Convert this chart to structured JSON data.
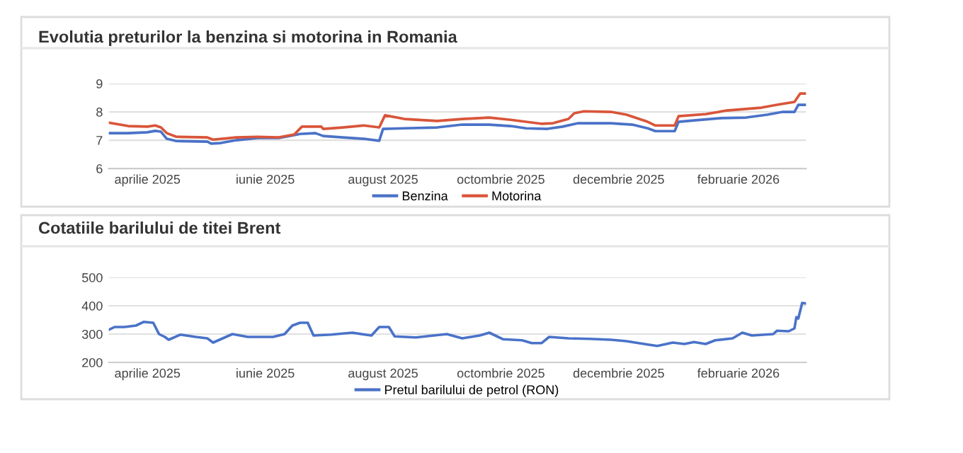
{
  "chart_data": [
    {
      "type": "line",
      "title": "Evolutia preturilor la benzina si motorina in Romania",
      "legend": "bottom",
      "grid": "y",
      "marker": "none",
      "line_style": "solid",
      "xlim": [
        "2025-03-12",
        "2026-03-08"
      ],
      "ylim": [
        6,
        9
      ],
      "yticks": [
        6,
        7,
        8,
        9
      ],
      "xticks": [
        {
          "value": "2025-04-01",
          "label": "aprilie 2025"
        },
        {
          "value": "2025-06-01",
          "label": "iunie 2025"
        },
        {
          "value": "2025-08-01",
          "label": "august 2025"
        },
        {
          "value": "2025-10-01",
          "label": "octombrie 2025"
        },
        {
          "value": "2025-12-01",
          "label": "decembrie 2025"
        },
        {
          "value": "2026-02-01",
          "label": "februarie 2026"
        }
      ],
      "series": [
        {
          "name": "Benzina",
          "color": "#4a72c8",
          "x": [
            "2025-03-12",
            "2025-03-22",
            "2025-04-01",
            "2025-04-05",
            "2025-04-08",
            "2025-04-11",
            "2025-04-16",
            "2025-05-02",
            "2025-05-04",
            "2025-05-09",
            "2025-05-17",
            "2025-05-28",
            "2025-06-08",
            "2025-06-14",
            "2025-06-19",
            "2025-06-27",
            "2025-07-01",
            "2025-07-11",
            "2025-07-22",
            "2025-07-30",
            "2025-08-01",
            "2025-08-12",
            "2025-08-29",
            "2025-09-11",
            "2025-09-25",
            "2025-10-06",
            "2025-10-14",
            "2025-10-25",
            "2025-11-02",
            "2025-11-10",
            "2025-11-27",
            "2025-12-08",
            "2025-12-16",
            "2025-12-20",
            "2025-12-30",
            "2026-01-01",
            "2026-01-09",
            "2026-01-23",
            "2026-02-05",
            "2026-02-16",
            "2026-02-24",
            "2026-03-02",
            "2026-03-04",
            "2026-03-08"
          ],
          "values": [
            7.25,
            7.25,
            7.28,
            7.33,
            7.3,
            7.05,
            6.97,
            6.95,
            6.88,
            6.9,
            7.0,
            7.08,
            7.08,
            7.15,
            7.22,
            7.25,
            7.15,
            7.1,
            7.05,
            6.98,
            7.4,
            7.42,
            7.45,
            7.55,
            7.55,
            7.5,
            7.42,
            7.4,
            7.48,
            7.6,
            7.6,
            7.55,
            7.42,
            7.32,
            7.32,
            7.65,
            7.7,
            7.78,
            7.8,
            7.9,
            8.0,
            8.0,
            8.25,
            8.25
          ]
        },
        {
          "name": "Motorina",
          "color": "#d9553a",
          "x": [
            "2025-03-12",
            "2025-03-22",
            "2025-04-01",
            "2025-04-05",
            "2025-04-08",
            "2025-04-11",
            "2025-04-16",
            "2025-05-02",
            "2025-05-05",
            "2025-05-17",
            "2025-05-28",
            "2025-06-08",
            "2025-06-16",
            "2025-06-20",
            "2025-06-30",
            "2025-07-01",
            "2025-07-11",
            "2025-07-22",
            "2025-07-30",
            "2025-08-02",
            "2025-08-12",
            "2025-08-29",
            "2025-09-11",
            "2025-09-25",
            "2025-10-06",
            "2025-10-22",
            "2025-10-28",
            "2025-11-05",
            "2025-11-08",
            "2025-11-13",
            "2025-11-27",
            "2025-12-05",
            "2025-12-16",
            "2025-12-20",
            "2025-12-30",
            "2026-01-01",
            "2026-01-15",
            "2026-01-26",
            "2026-02-13",
            "2026-02-21",
            "2026-03-02",
            "2026-03-05",
            "2026-03-08"
          ],
          "values": [
            7.62,
            7.5,
            7.48,
            7.52,
            7.45,
            7.25,
            7.12,
            7.1,
            7.02,
            7.1,
            7.12,
            7.1,
            7.2,
            7.48,
            7.48,
            7.4,
            7.45,
            7.52,
            7.45,
            7.88,
            7.75,
            7.68,
            7.75,
            7.8,
            7.72,
            7.58,
            7.6,
            7.75,
            7.95,
            8.02,
            8.0,
            7.9,
            7.65,
            7.52,
            7.52,
            7.85,
            7.92,
            8.05,
            8.15,
            8.25,
            8.35,
            8.65,
            8.65
          ]
        }
      ]
    },
    {
      "type": "line",
      "title": "Cotatiile barilului de titei Brent",
      "legend": "bottom",
      "grid": "y",
      "marker": "none",
      "line_style": "solid",
      "xlim": [
        "2025-03-12",
        "2026-03-08"
      ],
      "ylim": [
        200,
        500
      ],
      "yticks": [
        200,
        300,
        400,
        500
      ],
      "xticks": [
        {
          "value": "2025-04-01",
          "label": "aprilie 2025"
        },
        {
          "value": "2025-06-01",
          "label": "iunie 2025"
        },
        {
          "value": "2025-08-01",
          "label": "august 2025"
        },
        {
          "value": "2025-10-01",
          "label": "octombrie 2025"
        },
        {
          "value": "2025-12-01",
          "label": "decembrie 2025"
        },
        {
          "value": "2026-02-01",
          "label": "februarie 2026"
        }
      ],
      "series": [
        {
          "name": "Pretul barilului de petrol (RON)",
          "color": "#4a72c8",
          "x": [
            "2025-03-12",
            "2025-03-15",
            "2025-03-20",
            "2025-03-26",
            "2025-03-30",
            "2025-04-04",
            "2025-04-07",
            "2025-04-10",
            "2025-04-12",
            "2025-04-18",
            "2025-04-26",
            "2025-05-02",
            "2025-05-05",
            "2025-05-15",
            "2025-05-23",
            "2025-06-05",
            "2025-06-11",
            "2025-06-15",
            "2025-06-19",
            "2025-06-23",
            "2025-06-26",
            "2025-07-05",
            "2025-07-16",
            "2025-07-26",
            "2025-07-30",
            "2025-08-04",
            "2025-08-07",
            "2025-08-18",
            "2025-08-23",
            "2025-09-03",
            "2025-09-11",
            "2025-09-20",
            "2025-09-25",
            "2025-10-02",
            "2025-10-12",
            "2025-10-17",
            "2025-10-22",
            "2025-10-26",
            "2025-11-05",
            "2025-11-16",
            "2025-11-27",
            "2025-12-05",
            "2025-12-16",
            "2025-12-21",
            "2025-12-29",
            "2026-01-04",
            "2026-01-09",
            "2026-01-15",
            "2026-01-20",
            "2026-01-29",
            "2026-02-03",
            "2026-02-08",
            "2026-02-19",
            "2026-02-21",
            "2026-02-27",
            "2026-03-02",
            "2026-03-03",
            "2026-03-04",
            "2026-03-06",
            "2026-03-08"
          ],
          "values": [
            315,
            325,
            325,
            330,
            343,
            340,
            300,
            290,
            280,
            298,
            290,
            285,
            270,
            300,
            290,
            290,
            300,
            330,
            340,
            340,
            295,
            298,
            305,
            295,
            325,
            325,
            292,
            288,
            292,
            300,
            285,
            295,
            305,
            282,
            278,
            268,
            268,
            290,
            285,
            283,
            280,
            275,
            263,
            258,
            270,
            265,
            272,
            265,
            278,
            285,
            305,
            295,
            300,
            312,
            310,
            320,
            360,
            355,
            410,
            408
          ]
        }
      ]
    }
  ]
}
